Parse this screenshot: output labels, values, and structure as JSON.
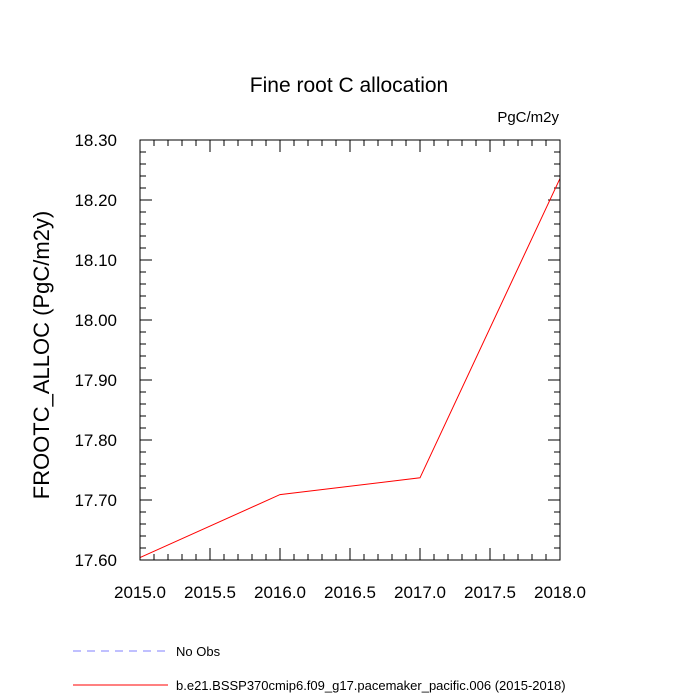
{
  "chart_data": {
    "type": "line",
    "title": "Fine root C allocation",
    "units": "PgC/m2y",
    "ylabel": "FROOTC_ALLOC  (PgC/m2y)",
    "xlabel": "",
    "xlim": [
      2015.0,
      2018.0
    ],
    "ylim": [
      17.6,
      18.3
    ],
    "x_ticks": [
      "2015.0",
      "2015.5",
      "2016.0",
      "2016.5",
      "2017.0",
      "2017.5",
      "2018.0"
    ],
    "y_ticks": [
      "17.60",
      "17.70",
      "17.80",
      "17.90",
      "18.00",
      "18.10",
      "18.20",
      "18.30"
    ],
    "grid": false,
    "series": [
      {
        "name": "b.e21.BSSP370cmip6.f09_g17.pacemaker_pacific.006 (2015-2018)",
        "color": "#ff0000",
        "style": "solid",
        "x": [
          2015,
          2016,
          2017,
          2018
        ],
        "y": [
          17.604,
          17.709,
          17.737,
          18.236
        ]
      },
      {
        "name": "No Obs",
        "color": "#8080ff",
        "style": "dashed",
        "x": [],
        "y": []
      }
    ],
    "legend_position": "bottom"
  }
}
